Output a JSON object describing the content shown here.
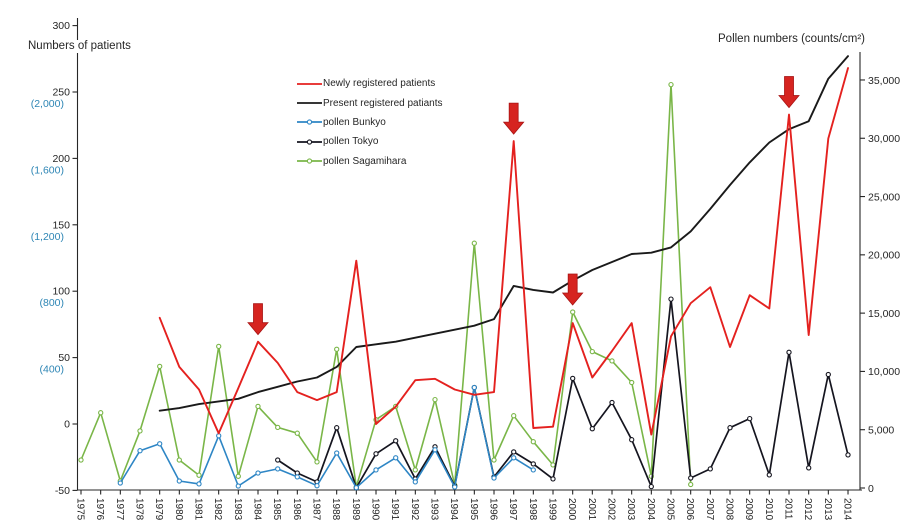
{
  "chart_data": {
    "type": "line",
    "title": "",
    "left_axis": {
      "title": "Numbers of patients",
      "range": [
        -50,
        300
      ],
      "ticks": [
        {
          "v": 300,
          "label": "300",
          "sub": ""
        },
        {
          "v": 250,
          "label": "250",
          "sub": "(2,000)"
        },
        {
          "v": 200,
          "label": "200",
          "sub": "(1,600)"
        },
        {
          "v": 150,
          "label": "150",
          "sub": "(1,200)"
        },
        {
          "v": 100,
          "label": "100",
          "sub": "(800)"
        },
        {
          "v": 50,
          "label": "50",
          "sub": "(400)"
        },
        {
          "v": 0,
          "label": "0",
          "sub": ""
        },
        {
          "v": -50,
          "label": "-50",
          "sub": ""
        }
      ],
      "sub_label_color": "#2e86b5"
    },
    "right_axis": {
      "title": "Pollen numbers (counts/cm²)",
      "range": [
        0,
        37500
      ],
      "ticks": [
        {
          "v": 35000,
          "label": "35,000"
        },
        {
          "v": 30000,
          "label": "30,000"
        },
        {
          "v": 25000,
          "label": "25,000"
        },
        {
          "v": 20000,
          "label": "20,000"
        },
        {
          "v": 15000,
          "label": "15,000"
        },
        {
          "v": 10000,
          "label": "10,000"
        },
        {
          "v": 5000,
          "label": "5,000"
        },
        {
          "v": 0,
          "label": "0"
        }
      ]
    },
    "x_axis": {
      "years": [
        1975,
        1976,
        1977,
        1978,
        1979,
        1980,
        1981,
        1982,
        1983,
        1984,
        1985,
        1986,
        1987,
        1988,
        1989,
        1990,
        1991,
        1992,
        1993,
        1994,
        1995,
        1996,
        1997,
        1998,
        1999,
        2000,
        2001,
        2002,
        2003,
        2004,
        2005,
        2006,
        2007,
        2008,
        2009,
        2010,
        2011,
        2012,
        2013,
        2014
      ]
    },
    "series": [
      {
        "name": "Newly registered patients",
        "axis": "left",
        "color": "#e4211f",
        "marker": false,
        "width": 1.9,
        "start_year": 1979,
        "values": [
          80,
          43,
          26,
          -7,
          27,
          62,
          46,
          24,
          18,
          24,
          123,
          0,
          13,
          33,
          34,
          26,
          22,
          24,
          213,
          -3,
          -2,
          76,
          35,
          55,
          76,
          -8,
          66,
          91,
          103,
          58,
          97,
          87,
          233,
          67,
          215,
          268
        ]
      },
      {
        "name": "Present registered patiants",
        "axis": "left",
        "color": "#1a1a1a",
        "marker": false,
        "width": 1.9,
        "start_year": 1979,
        "values": [
          10,
          12,
          15,
          17,
          19,
          24,
          28,
          32,
          35,
          43,
          58,
          60,
          62,
          65,
          68,
          71,
          74,
          79,
          104,
          101,
          99,
          108,
          116,
          122,
          128,
          129,
          133,
          145,
          162,
          180,
          197,
          212,
          222,
          228,
          260,
          277
        ]
      },
      {
        "name": "pollen Bunkyo",
        "axis": "right",
        "color": "#2e86c5",
        "marker": true,
        "width": 1.6,
        "start_year": 1977,
        "values": [
          430,
          3200,
          3790,
          600,
          350,
          4480,
          170,
          1290,
          1640,
          950,
          200,
          3000,
          30,
          1550,
          2590,
          520,
          3280,
          90,
          8620,
          860,
          2590,
          1550
        ]
      },
      {
        "name": "pollen Tokyo",
        "axis": "right",
        "color": "#15151f",
        "marker": true,
        "width": 1.7,
        "start_year": 1985,
        "values": [
          2400,
          1290,
          520,
          5170,
          30,
          2930,
          4050,
          780,
          3530,
          170,
          8620,
          950,
          3100,
          2070,
          780,
          9400,
          5090,
          7330,
          4140,
          120,
          16200,
          860,
          1640,
          5170,
          5950,
          1120,
          11640,
          1720,
          9740,
          2840
        ]
      },
      {
        "name": "pollen Sagamihara",
        "axis": "right",
        "color": "#7ab648",
        "marker": true,
        "width": 1.6,
        "start_year": 1975,
        "values": [
          2400,
          6460,
          600,
          4900,
          10430,
          2400,
          1100,
          12150,
          1000,
          7000,
          5200,
          4700,
          2240,
          11900,
          100,
          5860,
          7000,
          1550,
          7580,
          260,
          21000,
          2400,
          6200,
          3970,
          1980,
          15100,
          11700,
          10900,
          9050,
          1000,
          34600,
          300
        ]
      }
    ],
    "annotations": {
      "arrow_color": "#d62420",
      "arrows_at_years": [
        1984,
        1997,
        2000,
        2011
      ]
    },
    "legend_position": "upper-left-inside",
    "grid": false
  }
}
